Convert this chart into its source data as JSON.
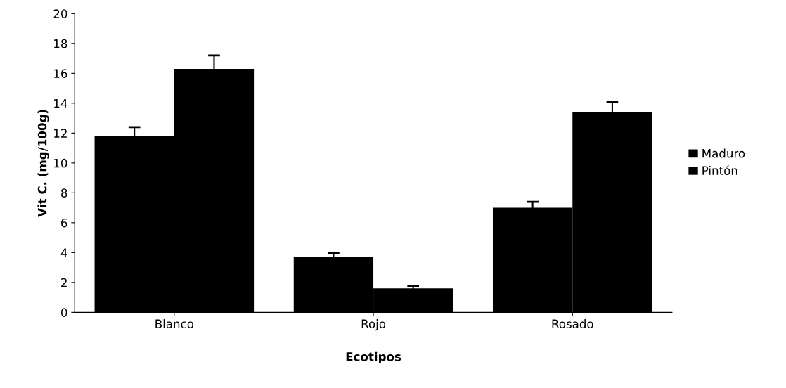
{
  "chart_data": {
    "type": "bar",
    "xlabel": "Ecotipos",
    "ylabel": "Vit C. (mg/100g)",
    "categories": [
      "Blanco",
      "Rojo",
      "Rosado"
    ],
    "series": [
      {
        "name": "Maduro",
        "color": "#000000",
        "values": [
          11.8,
          3.7,
          7.0
        ],
        "errors": [
          0.6,
          0.25,
          0.4
        ]
      },
      {
        "name": "Pintón",
        "color": "#000000",
        "values": [
          16.3,
          1.6,
          13.4
        ],
        "errors": [
          0.9,
          0.15,
          0.7
        ]
      }
    ],
    "ylim": [
      0,
      20
    ],
    "yticks": [
      0,
      2,
      4,
      6,
      8,
      10,
      12,
      14,
      16,
      18,
      20
    ],
    "grid": false,
    "legend": "right"
  }
}
